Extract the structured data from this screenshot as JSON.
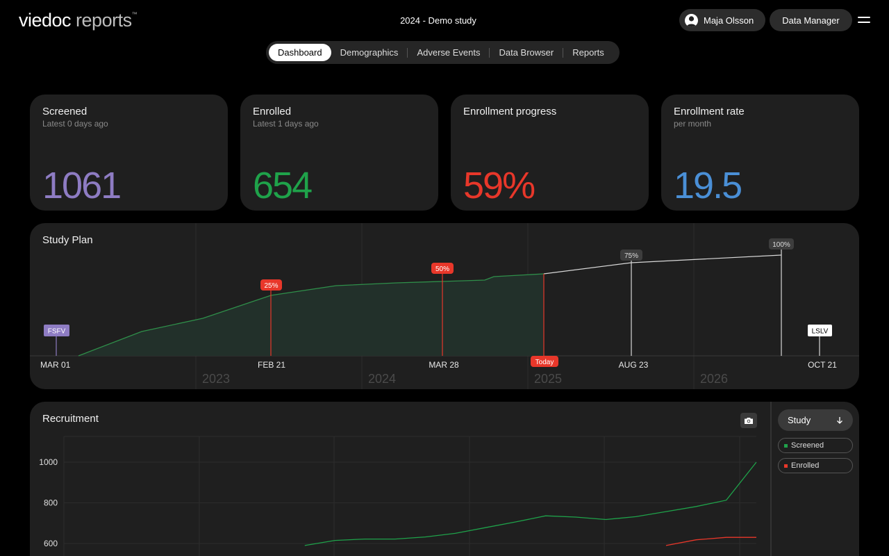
{
  "brand": {
    "logo_main": "viedoc",
    "logo_light": " reports",
    "trademark": "™"
  },
  "header": {
    "study_title": "2024 - Demo study",
    "user_name": "Maja Olsson",
    "role": "Data Manager"
  },
  "nav": {
    "tabs": [
      "Dashboard",
      "Demographics",
      "Adverse Events",
      "Data Browser",
      "Reports"
    ],
    "active": "Dashboard"
  },
  "kpis": [
    {
      "title": "Screened",
      "subtitle": "Latest 0 days ago",
      "value": "1061",
      "color": "#8e7cc3"
    },
    {
      "title": "Enrolled",
      "subtitle": "Latest 1 days ago",
      "value": "654",
      "color": "#1fa24a"
    },
    {
      "title": "Enrollment progress",
      "subtitle": "",
      "value": "59%",
      "color": "#e8372a"
    },
    {
      "title": "Enrollment rate",
      "subtitle": "per month",
      "value": "19.5",
      "color": "#4a8fd6"
    }
  ],
  "study_plan": {
    "title": "Study Plan",
    "start_label": "FSFV",
    "end_label": "LSLV",
    "today_label": "Today",
    "years": [
      "2023",
      "2024",
      "2025",
      "2026"
    ],
    "milestones": [
      {
        "date": "MAR 01"
      },
      {
        "date": "FEB 21",
        "percent": "25%",
        "state": "reached"
      },
      {
        "date": "MAR 28",
        "percent": "50%",
        "state": "reached"
      },
      {
        "date": "AUG 23",
        "percent": "75%",
        "state": "planned"
      },
      {
        "date": "OCT 21",
        "percent": "100%",
        "state": "planned"
      }
    ],
    "colors": {
      "actual": "#2f8f4a",
      "reached": "#e8372a",
      "planned": "#d9d9d9",
      "start": "#8e7cc3"
    }
  },
  "recruitment": {
    "title": "Recruitment",
    "filter_label": "Study",
    "legend": [
      {
        "name": "Screened",
        "color": "#1fa24a"
      },
      {
        "name": "Enrolled",
        "color": "#e8372a"
      }
    ]
  },
  "chart_data": {
    "type": "line",
    "title": "Recruitment",
    "ylabel": "",
    "xlabel": "",
    "yticks": [
      600,
      800,
      1000
    ],
    "ylim": [
      600,
      1110
    ],
    "x": [
      0,
      1,
      2,
      3,
      4,
      5,
      6,
      7,
      8,
      9,
      10,
      11,
      12,
      13,
      14,
      15,
      16,
      17,
      18,
      19,
      20,
      21,
      22,
      23
    ],
    "series": [
      {
        "name": "Screened",
        "values": [
          null,
          null,
          null,
          null,
          null,
          null,
          null,
          null,
          590,
          615,
          622,
          622,
          632,
          650,
          678,
          706,
          736,
          730,
          718,
          732,
          757,
          782,
          813,
          1000
        ]
      },
      {
        "name": "Enrolled",
        "values": [
          null,
          null,
          null,
          null,
          null,
          null,
          null,
          null,
          null,
          null,
          null,
          null,
          null,
          null,
          null,
          null,
          null,
          null,
          null,
          null,
          590,
          618,
          630,
          630
        ]
      }
    ]
  }
}
